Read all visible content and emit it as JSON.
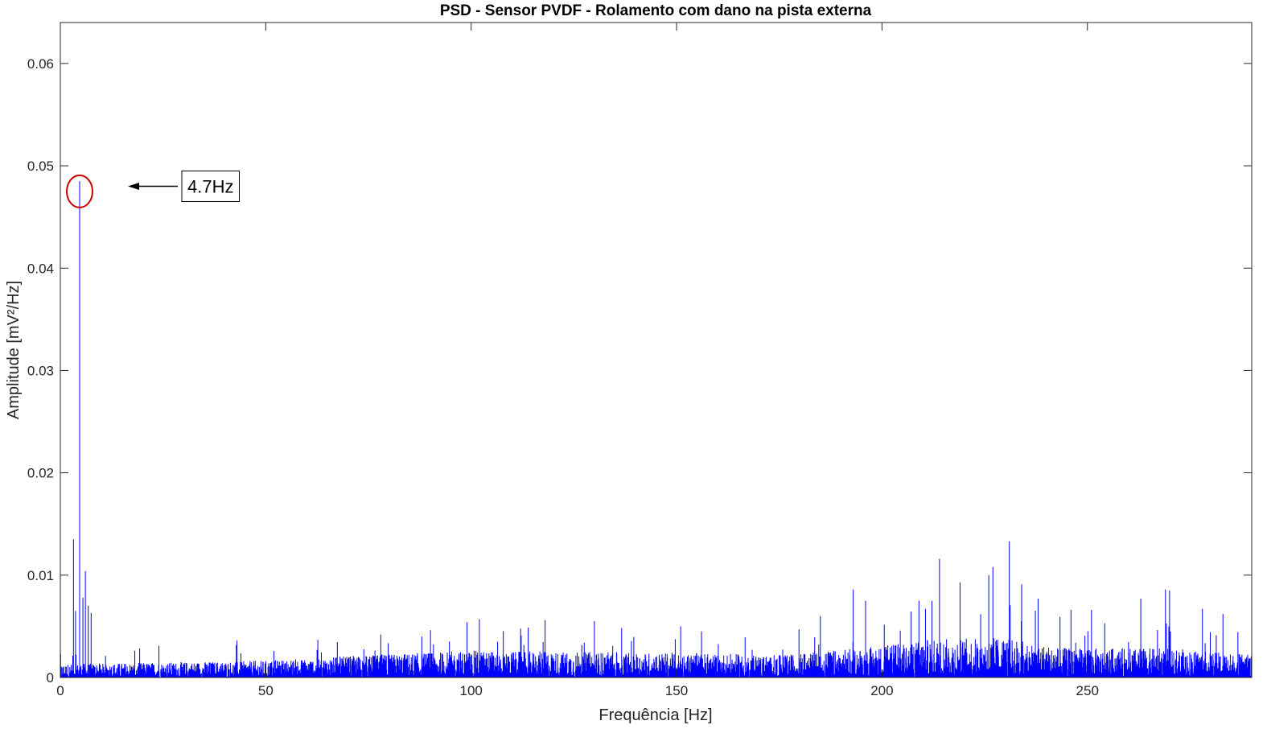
{
  "chart_data": {
    "type": "line",
    "title": "PSD - Sensor PVDF - Rolamento com dano na pista externa",
    "xlabel": "Frequência [Hz]",
    "ylabel": "Amplitude [mV²/Hz]",
    "xlim": [
      0,
      290
    ],
    "ylim": [
      0,
      0.064
    ],
    "xticks": [
      0,
      50,
      100,
      150,
      200,
      250
    ],
    "xtick_labels": [
      "0",
      "50",
      "100",
      "150",
      "200",
      "250"
    ],
    "yticks": [
      0,
      0.01,
      0.02,
      0.03,
      0.04,
      0.05,
      0.06
    ],
    "ytick_labels": [
      "0",
      "0.01",
      "0.02",
      "0.03",
      "0.04",
      "0.05",
      "0.06"
    ],
    "grid": false,
    "series": [
      {
        "color": "#0000ff",
        "peaks": [
          {
            "x": 3.2,
            "y": 0.0135
          },
          {
            "x": 3.7,
            "y": 0.0065
          },
          {
            "x": 4.7,
            "y": 0.0485
          },
          {
            "x": 5.5,
            "y": 0.0078
          },
          {
            "x": 6.1,
            "y": 0.0104
          },
          {
            "x": 6.8,
            "y": 0.007
          },
          {
            "x": 7.5,
            "y": 0.0063
          },
          {
            "x": 24,
            "y": 0.0031
          },
          {
            "x": 43,
            "y": 0.0036
          },
          {
            "x": 78,
            "y": 0.0042
          },
          {
            "x": 88,
            "y": 0.004
          },
          {
            "x": 99,
            "y": 0.0054
          },
          {
            "x": 102,
            "y": 0.0057
          },
          {
            "x": 118,
            "y": 0.0056
          },
          {
            "x": 130,
            "y": 0.0055
          },
          {
            "x": 151,
            "y": 0.005
          },
          {
            "x": 185,
            "y": 0.006
          },
          {
            "x": 193,
            "y": 0.0086
          },
          {
            "x": 196,
            "y": 0.0075
          },
          {
            "x": 209,
            "y": 0.0075
          },
          {
            "x": 214,
            "y": 0.0116
          },
          {
            "x": 219,
            "y": 0.0093
          },
          {
            "x": 226,
            "y": 0.01
          },
          {
            "x": 227,
            "y": 0.0108
          },
          {
            "x": 231,
            "y": 0.0133
          },
          {
            "x": 234,
            "y": 0.0091
          },
          {
            "x": 238,
            "y": 0.0077
          },
          {
            "x": 246,
            "y": 0.0066
          },
          {
            "x": 251,
            "y": 0.0066
          },
          {
            "x": 263,
            "y": 0.0077
          },
          {
            "x": 269,
            "y": 0.0086
          },
          {
            "x": 270,
            "y": 0.0085
          },
          {
            "x": 278,
            "y": 0.0067
          },
          {
            "x": 283,
            "y": 0.0062
          }
        ],
        "noise_floor": [
          {
            "x": 0,
            "y": 0.0012
          },
          {
            "x": 50,
            "y": 0.0015
          },
          {
            "x": 75,
            "y": 0.002
          },
          {
            "x": 100,
            "y": 0.0024
          },
          {
            "x": 150,
            "y": 0.0022
          },
          {
            "x": 175,
            "y": 0.002
          },
          {
            "x": 200,
            "y": 0.0028
          },
          {
            "x": 210,
            "y": 0.0034
          },
          {
            "x": 230,
            "y": 0.0036
          },
          {
            "x": 245,
            "y": 0.0026
          },
          {
            "x": 270,
            "y": 0.0026
          },
          {
            "x": 290,
            "y": 0.002
          }
        ]
      }
    ],
    "annotations": [
      {
        "type": "circle",
        "x": 4.7,
        "y": 0.0475,
        "color": "#cc0000"
      },
      {
        "type": "arrow",
        "x": 4.7,
        "y": 0.048,
        "text": "4.7Hz"
      }
    ]
  }
}
